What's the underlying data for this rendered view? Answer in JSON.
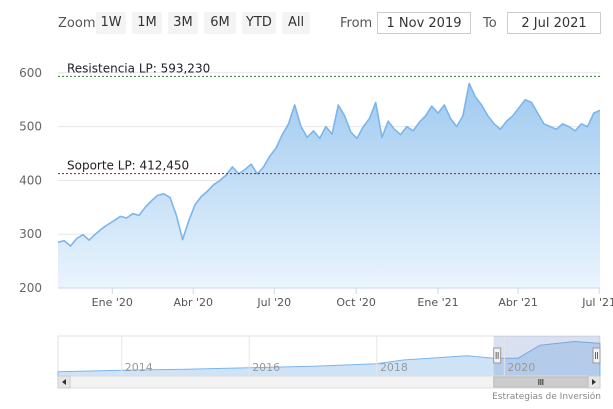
{
  "toolbar": {
    "zoom_label": "Zoom",
    "buttons": [
      "1W",
      "1M",
      "3M",
      "6M",
      "YTD",
      "All"
    ],
    "from_label": "From",
    "from_value": "1 Nov 2019",
    "to_label": "To",
    "to_value": "2 Jul 2021"
  },
  "credits": "Estrategias de Inversión",
  "colors": {
    "line": "#7cb5ec",
    "area_top": "#9fcaf0",
    "area_bottom": "#eaf4fd",
    "resistance": "#2f7d2f",
    "support": "#a01818"
  },
  "chart_data": {
    "type": "area",
    "title": "",
    "xlabel": "",
    "ylabel": "",
    "ylim": [
      200,
      620
    ],
    "y_ticks": [
      200,
      300,
      400,
      500,
      600
    ],
    "x_ticks": [
      {
        "label": "Ene '20",
        "date": "2020-01-01"
      },
      {
        "label": "Abr '20",
        "date": "2020-04-01"
      },
      {
        "label": "Jul '20",
        "date": "2020-07-01"
      },
      {
        "label": "Oct '20",
        "date": "2020-10-01"
      },
      {
        "label": "Ene '21",
        "date": "2021-01-01"
      },
      {
        "label": "Abr '21",
        "date": "2021-04-01"
      },
      {
        "label": "Jul '21",
        "date": "2021-07-01"
      }
    ],
    "x_range": [
      "2019-11-01",
      "2021-07-02"
    ],
    "annotations": [
      {
        "text": "Resistencia LP: 593,230",
        "value": 593.23,
        "style": "dotted",
        "color": "#2f7d2f"
      },
      {
        "text": "Soporte LP: 412,450",
        "value": 412.45,
        "style": "dotted",
        "color": "#a01818"
      }
    ],
    "series": [
      {
        "points": [
          [
            "2019-11-01",
            285
          ],
          [
            "2019-11-08",
            288
          ],
          [
            "2019-11-15",
            278
          ],
          [
            "2019-11-22",
            292
          ],
          [
            "2019-11-29",
            299
          ],
          [
            "2019-12-06",
            289
          ],
          [
            "2019-12-13",
            300
          ],
          [
            "2019-12-20",
            310
          ],
          [
            "2019-12-27",
            318
          ],
          [
            "2020-01-03",
            325
          ],
          [
            "2020-01-10",
            333
          ],
          [
            "2020-01-17",
            330
          ],
          [
            "2020-01-24",
            338
          ],
          [
            "2020-01-31",
            335
          ],
          [
            "2020-02-07",
            350
          ],
          [
            "2020-02-14",
            362
          ],
          [
            "2020-02-21",
            372
          ],
          [
            "2020-02-28",
            375
          ],
          [
            "2020-03-06",
            368
          ],
          [
            "2020-03-13",
            335
          ],
          [
            "2020-03-20",
            290
          ],
          [
            "2020-03-27",
            325
          ],
          [
            "2020-04-03",
            355
          ],
          [
            "2020-04-10",
            370
          ],
          [
            "2020-04-17",
            380
          ],
          [
            "2020-04-24",
            392
          ],
          [
            "2020-05-01",
            400
          ],
          [
            "2020-05-08",
            410
          ],
          [
            "2020-05-15",
            425
          ],
          [
            "2020-05-22",
            412
          ],
          [
            "2020-05-29",
            420
          ],
          [
            "2020-06-05",
            430
          ],
          [
            "2020-06-12",
            412
          ],
          [
            "2020-06-19",
            425
          ],
          [
            "2020-06-26",
            445
          ],
          [
            "2020-07-03",
            460
          ],
          [
            "2020-07-10",
            485
          ],
          [
            "2020-07-17",
            505
          ],
          [
            "2020-07-24",
            540
          ],
          [
            "2020-07-31",
            500
          ],
          [
            "2020-08-07",
            480
          ],
          [
            "2020-08-14",
            492
          ],
          [
            "2020-08-21",
            478
          ],
          [
            "2020-08-28",
            500
          ],
          [
            "2020-09-04",
            486
          ],
          [
            "2020-09-11",
            540
          ],
          [
            "2020-09-18",
            520
          ],
          [
            "2020-09-25",
            490
          ],
          [
            "2020-10-02",
            478
          ],
          [
            "2020-10-09",
            500
          ],
          [
            "2020-10-16",
            515
          ],
          [
            "2020-10-23",
            545
          ],
          [
            "2020-10-30",
            480
          ],
          [
            "2020-11-06",
            510
          ],
          [
            "2020-11-13",
            495
          ],
          [
            "2020-11-20",
            485
          ],
          [
            "2020-11-27",
            500
          ],
          [
            "2020-12-04",
            492
          ],
          [
            "2020-12-11",
            508
          ],
          [
            "2020-12-18",
            520
          ],
          [
            "2020-12-25",
            538
          ],
          [
            "2021-01-01",
            525
          ],
          [
            "2021-01-08",
            540
          ],
          [
            "2021-01-15",
            515
          ],
          [
            "2021-01-22",
            500
          ],
          [
            "2021-01-29",
            520
          ],
          [
            "2021-02-05",
            580
          ],
          [
            "2021-02-12",
            555
          ],
          [
            "2021-02-19",
            540
          ],
          [
            "2021-02-26",
            520
          ],
          [
            "2021-03-05",
            505
          ],
          [
            "2021-03-12",
            495
          ],
          [
            "2021-03-19",
            510
          ],
          [
            "2021-03-26",
            520
          ],
          [
            "2021-04-02",
            535
          ],
          [
            "2021-04-09",
            550
          ],
          [
            "2021-04-16",
            545
          ],
          [
            "2021-04-23",
            525
          ],
          [
            "2021-04-30",
            505
          ],
          [
            "2021-05-07",
            500
          ],
          [
            "2021-05-14",
            495
          ],
          [
            "2021-05-21",
            505
          ],
          [
            "2021-05-28",
            500
          ],
          [
            "2021-06-04",
            492
          ],
          [
            "2021-06-11",
            505
          ],
          [
            "2021-06-18",
            500
          ],
          [
            "2021-06-25",
            525
          ],
          [
            "2021-07-02",
            530
          ]
        ]
      }
    ]
  },
  "navigator": {
    "year_labels": [
      "2014",
      "2016",
      "2018",
      "2020"
    ],
    "range_start": "2013-01-01",
    "range_end": "2021-07-02",
    "ylim": [
      0,
      650
    ],
    "selected": [
      "2019-11-01",
      "2021-07-02"
    ],
    "profile": [
      [
        "2013-01-01",
        70
      ],
      [
        "2014-01-01",
        95
      ],
      [
        "2015-01-01",
        110
      ],
      [
        "2016-01-01",
        135
      ],
      [
        "2017-01-01",
        160
      ],
      [
        "2018-01-01",
        200
      ],
      [
        "2018-06-01",
        260
      ],
      [
        "2019-01-01",
        300
      ],
      [
        "2019-06-01",
        330
      ],
      [
        "2019-11-01",
        290
      ],
      [
        "2020-03-20",
        290
      ],
      [
        "2020-07-24",
        500
      ],
      [
        "2021-02-05",
        560
      ],
      [
        "2021-07-02",
        530
      ]
    ]
  }
}
